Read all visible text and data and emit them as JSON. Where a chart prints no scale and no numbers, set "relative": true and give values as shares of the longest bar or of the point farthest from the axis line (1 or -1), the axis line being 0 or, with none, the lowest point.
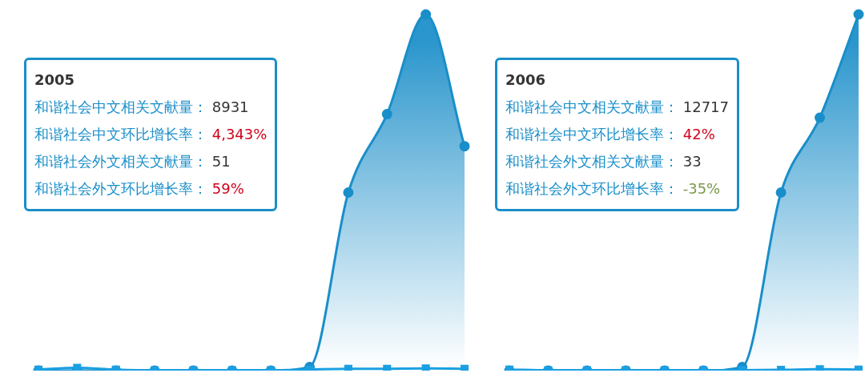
{
  "chart_data": [
    {
      "type": "area",
      "relative": true,
      "categories": [
        null,
        null,
        null,
        null,
        null,
        null,
        null,
        null,
        null,
        null,
        null,
        null
      ],
      "legend": false,
      "series": [
        {
          "color": "#1a8ec9",
          "values": [
            0,
            0,
            0,
            0,
            0,
            0,
            0,
            0.01,
            0.5,
            0.72,
            1,
            0.63
          ]
        },
        {
          "type": "line",
          "color": "#1ba0e2",
          "marker": "square",
          "values": [
            0.003,
            0.008,
            0.003,
            0.001,
            0.001,
            0.001,
            0.001,
            0.003,
            0.005,
            0.005,
            0.006,
            0.005
          ]
        }
      ],
      "annotations": [
        "2005",
        "和谐社会中文相关文献量： 8931",
        "和谐社会中文环比增长率： 4,343%",
        "和谐社会外文相关文献量： 51",
        "和谐社会外文环比增长率： 59%"
      ]
    },
    {
      "type": "area",
      "relative": true,
      "categories": [
        null,
        null,
        null,
        null,
        null,
        null,
        null,
        null,
        null,
        null
      ],
      "legend": false,
      "series": [
        {
          "color": "#1a8ec9",
          "values": [
            0,
            0,
            0,
            0,
            0,
            0,
            0.01,
            0.5,
            0.71,
            1
          ]
        },
        {
          "type": "line",
          "color": "#1ba0e2",
          "marker": "square",
          "values": [
            0.003,
            0.001,
            0.001,
            0.001,
            0.001,
            0.001,
            0.001,
            0.002,
            0.004,
            0.003
          ]
        }
      ],
      "annotations": [
        "2006",
        "和谐社会中文相关文献量： 12717",
        "和谐社会中文环比增长率： 42%",
        "和谐社会外文相关文献量： 33",
        "和谐社会外文环比增长率： -35%"
      ]
    }
  ]
}
